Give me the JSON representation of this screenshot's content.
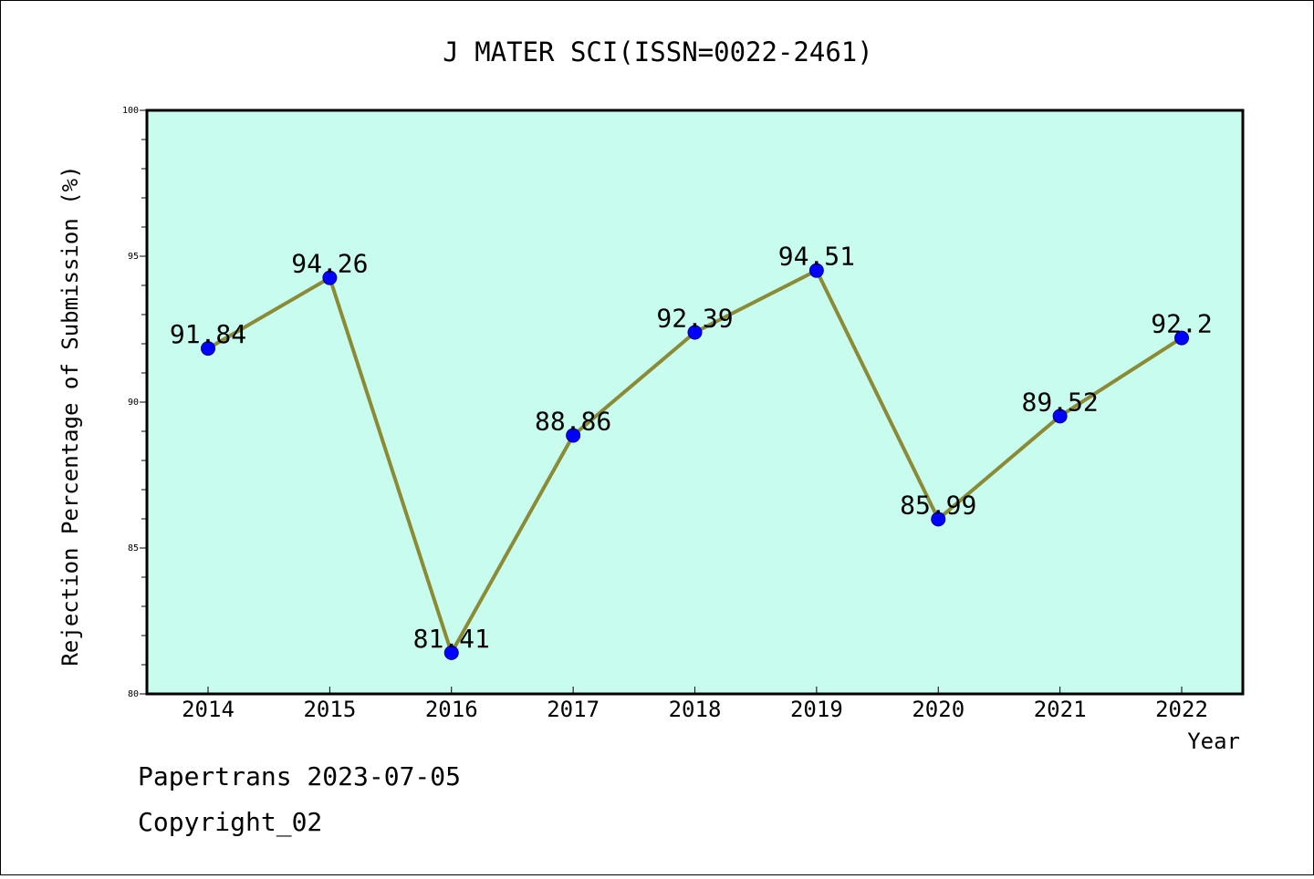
{
  "chart_data": {
    "type": "line",
    "title": "J MATER SCI(ISSN=0022-2461)",
    "xlabel": "Year",
    "ylabel": "Rejection Percentage of Submission (%)",
    "categories": [
      "2014",
      "2015",
      "2016",
      "2017",
      "2018",
      "2019",
      "2020",
      "2021",
      "2022"
    ],
    "series": [
      {
        "values": [
          91.84,
          94.26,
          81.41,
          88.86,
          92.39,
          94.51,
          85.99,
          89.52,
          92.2
        ],
        "data_labels": [
          "91.84",
          "94.26",
          "81.41",
          "88.86",
          "92.39",
          "94.51",
          "85.99",
          "89.52",
          "92.2"
        ]
      }
    ],
    "ylim": [
      80,
      100
    ],
    "yticks": [
      "80",
      "85",
      "90",
      "95",
      "100"
    ],
    "grid": false,
    "legend": "none",
    "colors": {
      "plot_background": "#c8fcee",
      "line": "#8b8a35",
      "marker": "#0000ff"
    }
  },
  "footer": {
    "line1": "Papertrans 2023-07-05",
    "line2": "Copyright_02"
  }
}
